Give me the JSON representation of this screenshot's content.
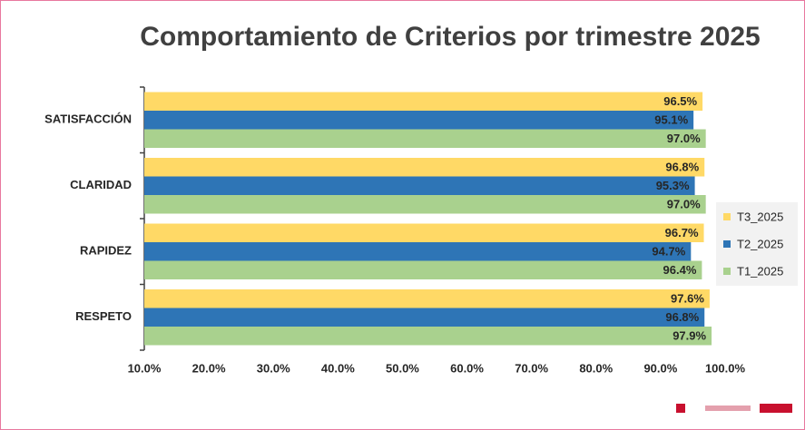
{
  "chart_data": {
    "type": "bar",
    "orientation": "horizontal",
    "title": "Comportamiento de Criterios por trimestre 2025",
    "categories": [
      "SATISFACCIÓN",
      "CLARIDAD",
      "RAPIDEZ",
      "RESPETO"
    ],
    "series": [
      {
        "name": "T3_2025",
        "color": "#FFD966",
        "values": [
          96.5,
          96.8,
          96.7,
          97.6
        ],
        "value_labels": [
          "96.5%",
          "96.8%",
          "96.7%",
          "97.6%"
        ]
      },
      {
        "name": "T2_2025",
        "color": "#2E75B6",
        "values": [
          95.1,
          95.3,
          94.7,
          96.8
        ],
        "value_labels": [
          "95.1%",
          "95.3%",
          "94.7%",
          "96.8%"
        ]
      },
      {
        "name": "T1_2025",
        "color": "#A9D18E",
        "values": [
          97.0,
          97.0,
          96.4,
          97.9
        ],
        "value_labels": [
          "97.0%",
          "97.0%",
          "96.4%",
          "97.9%"
        ]
      }
    ],
    "xlim": [
      10,
      100
    ],
    "xticks": [
      {
        "value": 10,
        "label": "10.0%"
      },
      {
        "value": 20,
        "label": "20.0%"
      },
      {
        "value": 30,
        "label": "30.0%"
      },
      {
        "value": 40,
        "label": "40.0%"
      },
      {
        "value": 50,
        "label": "50.0%"
      },
      {
        "value": 60,
        "label": "60.0%"
      },
      {
        "value": 70,
        "label": "70.0%"
      },
      {
        "value": 80,
        "label": "80.0%"
      },
      {
        "value": 90,
        "label": "90.0%"
      },
      {
        "value": 100,
        "label": "100.0%"
      }
    ],
    "grid": false,
    "legend": "right"
  }
}
